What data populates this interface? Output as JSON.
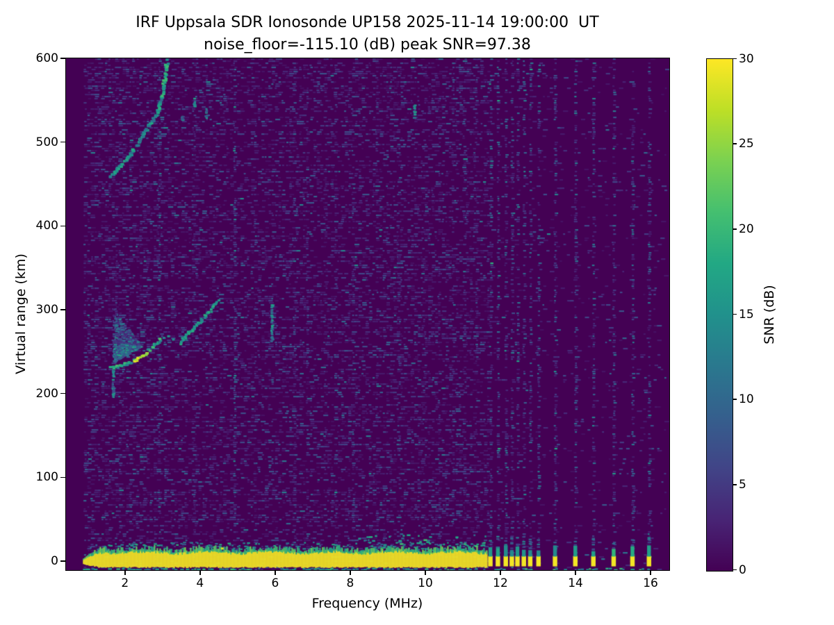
{
  "chart_data": {
    "type": "heatmap",
    "title": "IRF Uppsala SDR Ionosonde UP158 2025-11-14 19:00:00  UT",
    "subtitle": "noise_floor=-115.10 (dB) peak SNR=97.38",
    "xlabel": "Frequency (MHz)",
    "ylabel": "Virtual range (km)",
    "xlim": [
      0.43,
      16.48
    ],
    "ylim": [
      -10,
      600
    ],
    "x_ticks": [
      2,
      4,
      6,
      8,
      10,
      12,
      14,
      16
    ],
    "y_ticks": [
      0,
      100,
      200,
      300,
      400,
      500,
      600
    ],
    "noise_floor_db": -115.1,
    "peak_snr_db": 97.38,
    "colorbar": {
      "label": "SNR (dB)",
      "min": 0,
      "max": 30,
      "ticks": [
        0,
        5,
        10,
        15,
        20,
        25,
        30
      ],
      "colormap": "viridis"
    },
    "colormap_stops": [
      [
        0.0,
        "#440154"
      ],
      [
        0.1,
        "#482475"
      ],
      [
        0.2,
        "#414487"
      ],
      [
        0.3,
        "#355f8d"
      ],
      [
        0.4,
        "#2a788e"
      ],
      [
        0.5,
        "#21918c"
      ],
      [
        0.6,
        "#22a884"
      ],
      [
        0.7,
        "#44bf70"
      ],
      [
        0.8,
        "#7ad151"
      ],
      [
        0.9,
        "#bddf26"
      ],
      [
        1.0,
        "#fde725"
      ]
    ],
    "background_color": "#440154",
    "features": {
      "sweep": {
        "f_start": 0.88,
        "f_end": 16.42
      },
      "background_noise": {
        "dense_f_max": 11.65,
        "dense_density": 0.3,
        "sparse_density": 0.05
      },
      "ground_band": {
        "f_start": 0.88,
        "f_taper_end": 1.3,
        "f_end": 11.63,
        "km_top": 11,
        "km_bottom": -6,
        "fringe_km": 6,
        "speckle_km_max": 24,
        "cloud": {
          "f_start": 8.1,
          "f_end": 11.6,
          "km_max": 33
        },
        "yellow_dot": [
          4.55,
          17
        ]
      },
      "bottom_line_km": -8,
      "ground_blips_mhz": [
        11.72,
        11.92,
        12.13,
        12.29,
        12.44,
        12.61,
        12.78,
        13.0,
        13.44,
        13.98,
        14.46,
        15.0,
        15.5,
        15.94
      ],
      "blip_width_mhz": 0.12,
      "rfi_columns": [
        [
          2.92,
          1.3
        ],
        [
          3.85,
          0.8
        ],
        [
          4.92,
          1.5
        ],
        [
          5.45,
          0.7
        ],
        [
          6.52,
          0.9
        ],
        [
          6.85,
          0.8
        ],
        [
          7.35,
          0.7
        ],
        [
          7.62,
          0.7
        ],
        [
          8.08,
          0.9
        ],
        [
          8.7,
          0.7
        ],
        [
          9.3,
          0.8
        ],
        [
          9.95,
          0.8
        ],
        [
          10.35,
          0.7
        ],
        [
          10.72,
          0.8
        ],
        [
          11.05,
          0.7
        ],
        [
          11.35,
          0.8
        ]
      ],
      "f_layer_trace_o": [
        [
          1.6,
          232
        ],
        [
          1.72,
          233
        ],
        [
          1.85,
          235
        ],
        [
          2.0,
          237
        ],
        [
          2.12,
          239
        ],
        [
          2.24,
          242
        ],
        [
          2.35,
          244
        ],
        [
          2.45,
          247
        ],
        [
          2.57,
          252
        ],
        [
          2.68,
          257
        ],
        [
          2.8,
          261
        ],
        [
          2.9,
          266
        ]
      ],
      "f_layer_bright_range_mhz": [
        2.2,
        2.55
      ],
      "f_layer_gap_dots": [
        [
          3.0,
          268
        ],
        [
          3.12,
          270
        ],
        [
          3.25,
          266
        ]
      ],
      "f_layer_trace_x": [
        [
          3.42,
          262
        ],
        [
          3.55,
          268
        ],
        [
          3.68,
          274
        ],
        [
          3.82,
          281
        ],
        [
          3.95,
          287
        ],
        [
          4.08,
          293
        ],
        [
          4.2,
          299
        ],
        [
          4.33,
          306
        ],
        [
          4.45,
          312
        ]
      ],
      "second_hop_trace": [
        [
          1.57,
          460
        ],
        [
          1.7,
          466
        ],
        [
          1.85,
          473
        ],
        [
          2.0,
          481
        ],
        [
          2.15,
          490
        ],
        [
          2.3,
          500
        ],
        [
          2.45,
          511
        ],
        [
          2.6,
          521
        ],
        [
          2.72,
          528
        ],
        [
          2.83,
          537
        ],
        [
          2.9,
          548
        ],
        [
          2.97,
          562
        ],
        [
          3.02,
          577
        ],
        [
          3.06,
          592
        ],
        [
          3.09,
          600
        ]
      ],
      "spread_fan": {
        "f_range": [
          1.66,
          2.55
        ],
        "upper_km_at_left": 300,
        "upper_km_at_right": 250,
        "lower_offset_km": 4
      },
      "echo_spots": [
        [
          3.5,
          530,
          8
        ],
        [
          3.82,
          548,
          10
        ],
        [
          4.13,
          535,
          14
        ],
        [
          9.67,
          538,
          16
        ],
        [
          5.88,
          285,
          45
        ],
        [
          1.66,
          212,
          34
        ]
      ]
    }
  }
}
